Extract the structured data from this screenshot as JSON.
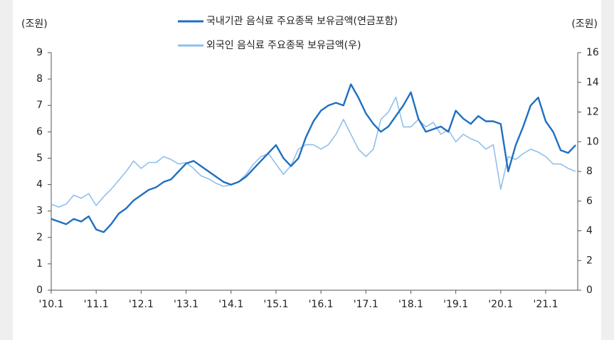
{
  "chart_data": {
    "type": "line",
    "y_label": "(조원)",
    "y2_label": "(조원)",
    "categories": [
      "'10.1",
      null,
      null,
      null,
      null,
      null,
      "'11.1",
      null,
      null,
      null,
      null,
      null,
      "'12.1",
      null,
      null,
      null,
      null,
      null,
      "'13.1",
      null,
      null,
      null,
      null,
      null,
      "'14.1",
      null,
      null,
      null,
      null,
      null,
      "'15.1",
      null,
      null,
      null,
      null,
      null,
      "'16.1",
      null,
      null,
      null,
      null,
      null,
      "'17.1",
      null,
      null,
      null,
      null,
      null,
      "'18.1",
      null,
      null,
      null,
      null,
      null,
      "'19.1",
      null,
      null,
      null,
      null,
      null,
      "'20.1",
      null,
      null,
      null,
      null,
      null,
      "'21.1",
      null,
      null,
      null,
      null
    ],
    "series": [
      {
        "name": "국내기관 음식료 주요종목 보유금액(연금포함)",
        "color": "#1f6fc0",
        "values": [
          2.7,
          2.6,
          2.5,
          2.7,
          2.6,
          2.8,
          2.3,
          2.2,
          2.5,
          2.9,
          3.1,
          3.4,
          3.6,
          3.8,
          3.9,
          4.1,
          4.2,
          4.5,
          4.8,
          4.9,
          4.7,
          4.5,
          4.3,
          4.1,
          4.0,
          4.1,
          4.3,
          4.6,
          4.9,
          5.2,
          5.5,
          5.0,
          4.7,
          5.0,
          5.8,
          6.4,
          6.8,
          7.0,
          7.1,
          7.0,
          7.8,
          7.3,
          6.7,
          6.3,
          6.0,
          6.2,
          6.6,
          7.0,
          7.5,
          6.5,
          6.0,
          6.1,
          6.2,
          6.0,
          6.8,
          6.5,
          6.3,
          6.6,
          6.4,
          6.4,
          6.3,
          4.5,
          5.5,
          6.2,
          7.0,
          7.3,
          6.4,
          6.0,
          5.3,
          5.2,
          5.5
        ]
      },
      {
        "name": "외국인 음식료 주요종목 보유금액(우)",
        "color": "#8fc0ec",
        "axis": "y2",
        "values": [
          5.8,
          5.6,
          5.8,
          6.4,
          6.2,
          6.5,
          5.7,
          6.3,
          6.8,
          7.4,
          8.0,
          8.7,
          8.2,
          8.6,
          8.6,
          9.0,
          8.8,
          8.5,
          8.6,
          8.2,
          7.7,
          7.5,
          7.2,
          7.0,
          7.1,
          7.3,
          7.8,
          8.5,
          9.0,
          9.2,
          8.5,
          7.8,
          8.4,
          9.5,
          9.8,
          9.8,
          9.5,
          9.8,
          10.5,
          11.5,
          10.5,
          9.5,
          9.0,
          9.5,
          11.5,
          12.0,
          13.0,
          11.0,
          11.0,
          11.5,
          11.0,
          11.3,
          10.5,
          10.8,
          10.0,
          10.5,
          10.2,
          10.0,
          9.5,
          9.8,
          6.8,
          9.0,
          8.8,
          9.2,
          9.5,
          9.3,
          9.0,
          8.5,
          8.5,
          8.2,
          8.0
        ]
      }
    ],
    "ylim": [
      0,
      9
    ],
    "yticks": [
      0,
      1,
      2,
      3,
      4,
      5,
      6,
      7,
      8,
      9
    ],
    "y2lim": [
      0,
      16
    ],
    "y2ticks": [
      0,
      2,
      4,
      6,
      8,
      10,
      12,
      14,
      16
    ]
  }
}
